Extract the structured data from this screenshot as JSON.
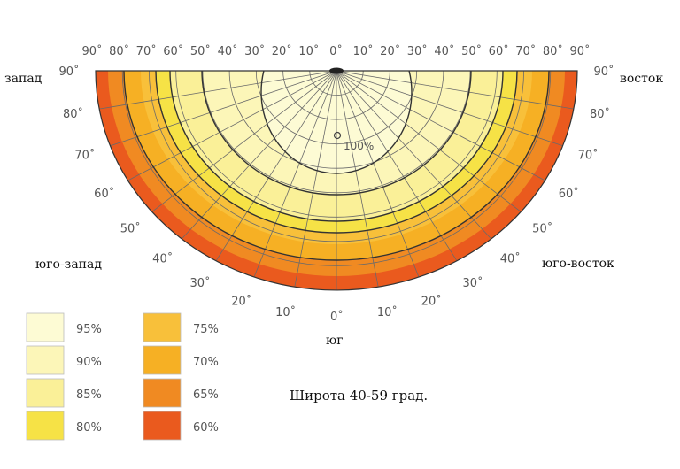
{
  "title": "Широта 40-59 град.",
  "directions": {
    "west": "запад",
    "east": "восток",
    "south_west": "юго-запад",
    "south_east": "юго-восток",
    "south": "юг"
  },
  "center_label": "100%",
  "top_scale_labels": [
    "90˚",
    "80˚",
    "70˚",
    "60˚",
    "50˚",
    "40˚",
    "30˚",
    "20˚",
    "10˚",
    "0˚",
    "10˚",
    "20˚",
    "30˚",
    "40˚",
    "50˚",
    "60˚",
    "70˚",
    "80˚",
    "90˚"
  ],
  "left_arc_labels": [
    "90˚",
    "80˚",
    "70˚",
    "60˚",
    "50˚",
    "40˚",
    "30˚",
    "20˚",
    "10˚"
  ],
  "right_arc_labels": [
    "90˚",
    "80˚",
    "70˚",
    "60˚",
    "50˚",
    "40˚",
    "30˚",
    "20˚",
    "10˚"
  ],
  "bottom_label": "0˚",
  "zones": [
    {
      "value": "95%",
      "color": "#fdfbd4"
    },
    {
      "value": "90%",
      "color": "#fcf6b8"
    },
    {
      "value": "85%",
      "color": "#faf098"
    },
    {
      "value": "80%",
      "color": "#f6e246"
    },
    {
      "value": "75%",
      "color": "#f8c03a"
    },
    {
      "value": "70%",
      "color": "#f6b024"
    },
    {
      "value": "65%",
      "color": "#f08a22"
    },
    {
      "value": "60%",
      "color": "#ea5a1e"
    }
  ],
  "legend": [
    {
      "value": "95%",
      "color": "#fdfbd4"
    },
    {
      "value": "90%",
      "color": "#fcf6b8"
    },
    {
      "value": "85%",
      "color": "#faf098"
    },
    {
      "value": "80%",
      "color": "#f6e246"
    },
    {
      "value": "75%",
      "color": "#f8c03a"
    },
    {
      "value": "70%",
      "color": "#f6b024"
    },
    {
      "value": "65%",
      "color": "#f08a22"
    },
    {
      "value": "60%",
      "color": "#ea5a1e"
    }
  ]
}
